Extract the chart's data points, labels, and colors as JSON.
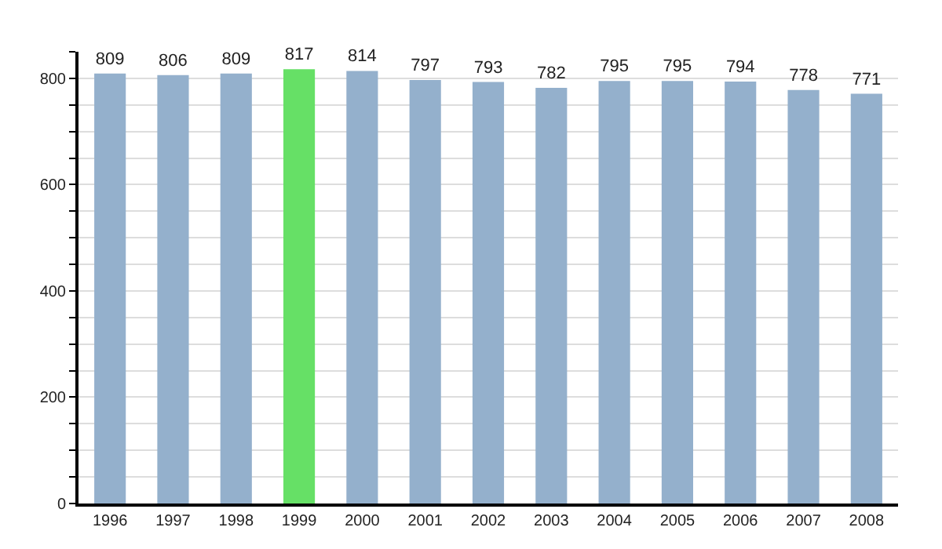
{
  "chart_data": {
    "type": "bar",
    "categories": [
      "1996",
      "1997",
      "1998",
      "1999",
      "2000",
      "2001",
      "2002",
      "2003",
      "2004",
      "2005",
      "2006",
      "2007",
      "2008"
    ],
    "values": [
      809,
      806,
      809,
      817,
      814,
      797,
      793,
      782,
      795,
      795,
      794,
      778,
      771
    ],
    "colors": [
      "#94b0cc",
      "#94b0cc",
      "#94b0cc",
      "#66e066",
      "#94b0cc",
      "#94b0cc",
      "#94b0cc",
      "#94b0cc",
      "#94b0cc",
      "#94b0cc",
      "#94b0cc",
      "#94b0cc",
      "#94b0cc"
    ],
    "data_labels": true,
    "ylim": [
      0,
      850
    ],
    "yticks": [
      0,
      {
        "value": 50,
        "label": null
      },
      {
        "value": 100,
        "label": null
      },
      {
        "value": 150,
        "label": null
      },
      200,
      {
        "value": 250,
        "label": null
      },
      {
        "value": 300,
        "label": null
      },
      {
        "value": 350,
        "label": null
      },
      400,
      {
        "value": 450,
        "label": null
      },
      {
        "value": 500,
        "label": null
      },
      {
        "value": 550,
        "label": null
      },
      600,
      {
        "value": 650,
        "label": null
      },
      {
        "value": 700,
        "label": null
      },
      {
        "value": 750,
        "label": null
      },
      800,
      {
        "value": 850,
        "label": null
      }
    ],
    "grid": "y"
  }
}
